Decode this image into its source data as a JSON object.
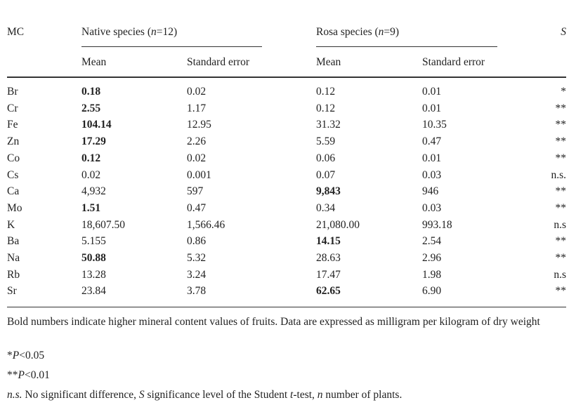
{
  "header": {
    "mc": "MC",
    "native_group": "Native species (n=12)",
    "rosa_group": "Rosa species (n=9)",
    "significance": "S",
    "mean": "Mean",
    "stderr": "Standard error"
  },
  "rows": [
    {
      "mc": "Br",
      "n_mean": "0.18",
      "n_se": "0.02",
      "r_mean": "0.12",
      "r_se": "0.01",
      "s": "*",
      "bold": "native"
    },
    {
      "mc": "Cr",
      "n_mean": "2.55",
      "n_se": "1.17",
      "r_mean": "0.12",
      "r_se": "0.01",
      "s": "**",
      "bold": "native"
    },
    {
      "mc": "Fe",
      "n_mean": "104.14",
      "n_se": "12.95",
      "r_mean": "31.32",
      "r_se": "10.35",
      "s": "**",
      "bold": "native"
    },
    {
      "mc": "Zn",
      "n_mean": "17.29",
      "n_se": "2.26",
      "r_mean": "5.59",
      "r_se": "0.47",
      "s": "**",
      "bold": "native"
    },
    {
      "mc": "Co",
      "n_mean": "0.12",
      "n_se": "0.02",
      "r_mean": "0.06",
      "r_se": "0.01",
      "s": "**",
      "bold": "native"
    },
    {
      "mc": "Cs",
      "n_mean": "0.02",
      "n_se": "0.001",
      "r_mean": "0.07",
      "r_se": "0.03",
      "s": "n.s.",
      "bold": ""
    },
    {
      "mc": "Ca",
      "n_mean": "4,932",
      "n_se": "597",
      "r_mean": "9,843",
      "r_se": "946",
      "s": "**",
      "bold": "rosa"
    },
    {
      "mc": "Mo",
      "n_mean": "1.51",
      "n_se": "0.47",
      "r_mean": "0.34",
      "r_se": "0.03",
      "s": "**",
      "bold": "native"
    },
    {
      "mc": "K",
      "n_mean": "18,607.50",
      "n_se": "1,566.46",
      "r_mean": "21,080.00",
      "r_se": "993.18",
      "s": "n.s",
      "bold": ""
    },
    {
      "mc": "Ba",
      "n_mean": "5.155",
      "n_se": "0.86",
      "r_mean": "14.15",
      "r_se": "2.54",
      "s": "**",
      "bold": "rosa"
    },
    {
      "mc": "Na",
      "n_mean": "50.88",
      "n_se": "5.32",
      "r_mean": "28.63",
      "r_se": "2.96",
      "s": "**",
      "bold": "native"
    },
    {
      "mc": "Rb",
      "n_mean": "13.28",
      "n_se": "3.24",
      "r_mean": "17.47",
      "r_se": "1.98",
      "s": "n.s",
      "bold": ""
    },
    {
      "mc": "Sr",
      "n_mean": "23.84",
      "n_se": "3.78",
      "r_mean": "62.65",
      "r_se": "6.90",
      "s": "**",
      "bold": "rosa"
    }
  ],
  "footnotes": {
    "note": "Bold numbers indicate higher mineral content values of fruits. Data are expressed as milligram per kilogram of dry weight",
    "p1": "*P<0.05",
    "p2": "**P<0.01",
    "legend": "n.s. No significant difference, S significance level of the Student t-test, n number of plants."
  }
}
